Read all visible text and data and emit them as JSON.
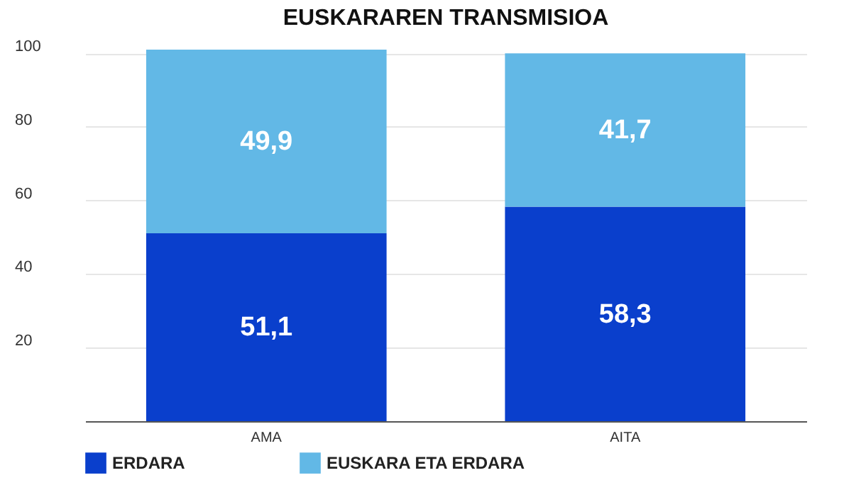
{
  "chart_data": {
    "type": "bar",
    "title": "EUSKARAREN TRANSMISIOA",
    "categories": [
      "AMA",
      "AITA"
    ],
    "stacked": true,
    "series": [
      {
        "name": "ERDARA",
        "color": "#0a3fcc",
        "values": [
          51.1,
          58.3
        ],
        "value_labels": [
          "51,1",
          "58,3"
        ]
      },
      {
        "name": "EUSKARA ETA ERDARA",
        "color": "#62b8e6",
        "values": [
          49.9,
          41.7
        ],
        "value_labels": [
          "49,9",
          "41,7"
        ]
      }
    ],
    "ylim": [
      0,
      101
    ],
    "yticks": [
      20,
      40,
      60,
      80,
      100
    ],
    "grid": "y",
    "legend": "bottom"
  }
}
